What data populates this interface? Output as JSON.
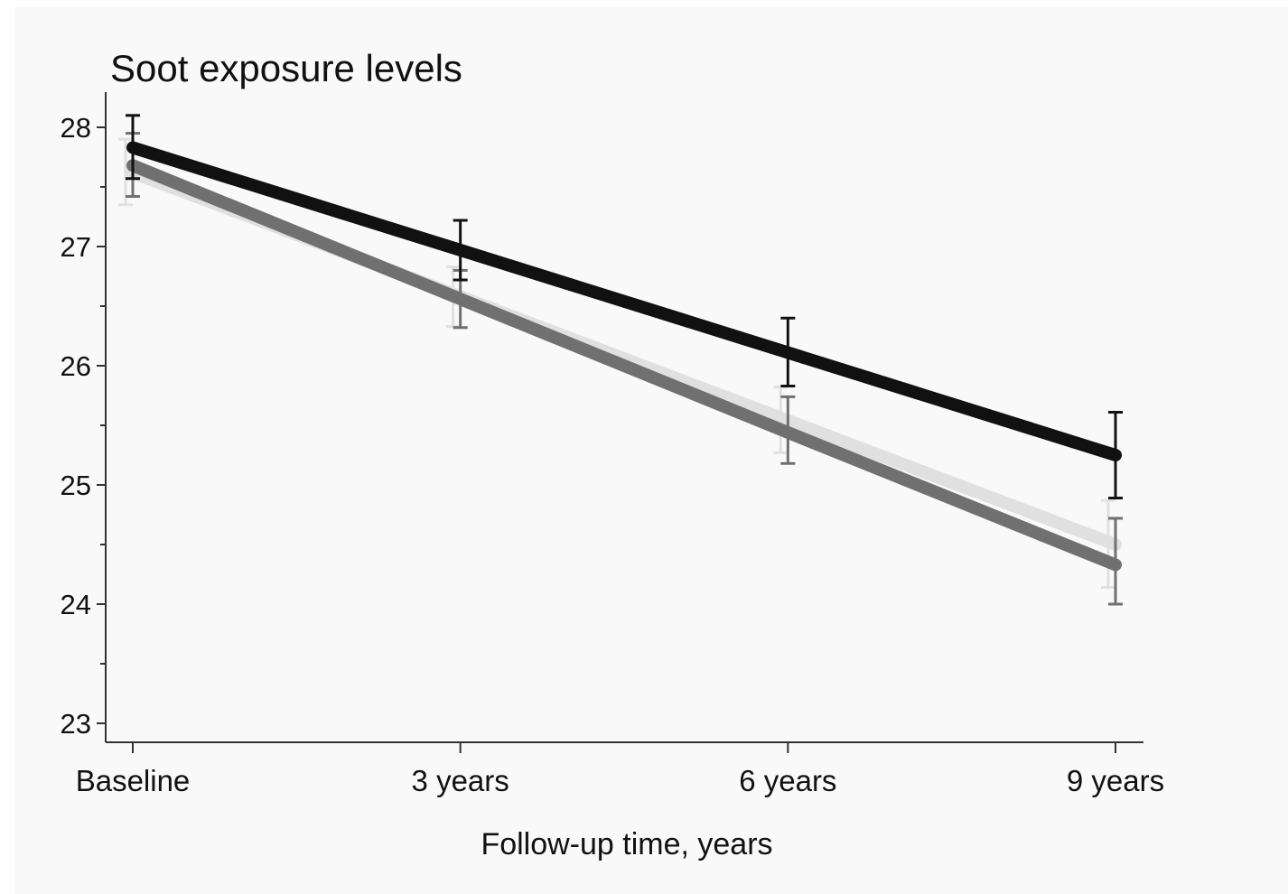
{
  "chart_data": {
    "type": "line",
    "title": "Soot exposure levels",
    "xlabel": "Follow-up time, years",
    "ylabel": "",
    "categories": [
      "Baseline",
      "3 years",
      "6 years",
      "9 years"
    ],
    "ylim": [
      23,
      28
    ],
    "yticks": [
      23,
      24,
      25,
      26,
      27,
      28
    ],
    "y_minor_step": 0.5,
    "grid": false,
    "legend": "none",
    "series": [
      {
        "color": "#e0e0e0",
        "values": [
          27.62,
          26.58,
          25.54,
          24.5
        ],
        "err_low": [
          27.35,
          26.33,
          25.27,
          24.14
        ],
        "err_high": [
          27.9,
          26.83,
          25.82,
          24.87
        ]
      },
      {
        "color": "#707070",
        "values": [
          27.68,
          26.56,
          25.44,
          24.33
        ],
        "err_low": [
          27.42,
          26.32,
          25.18,
          24.0
        ],
        "err_high": [
          27.95,
          26.8,
          25.74,
          24.72
        ]
      },
      {
        "color": "#111111",
        "values": [
          27.83,
          26.97,
          26.11,
          25.25
        ],
        "err_low": [
          27.57,
          26.72,
          25.83,
          24.89
        ],
        "err_high": [
          28.1,
          27.22,
          26.4,
          25.61
        ]
      }
    ]
  }
}
